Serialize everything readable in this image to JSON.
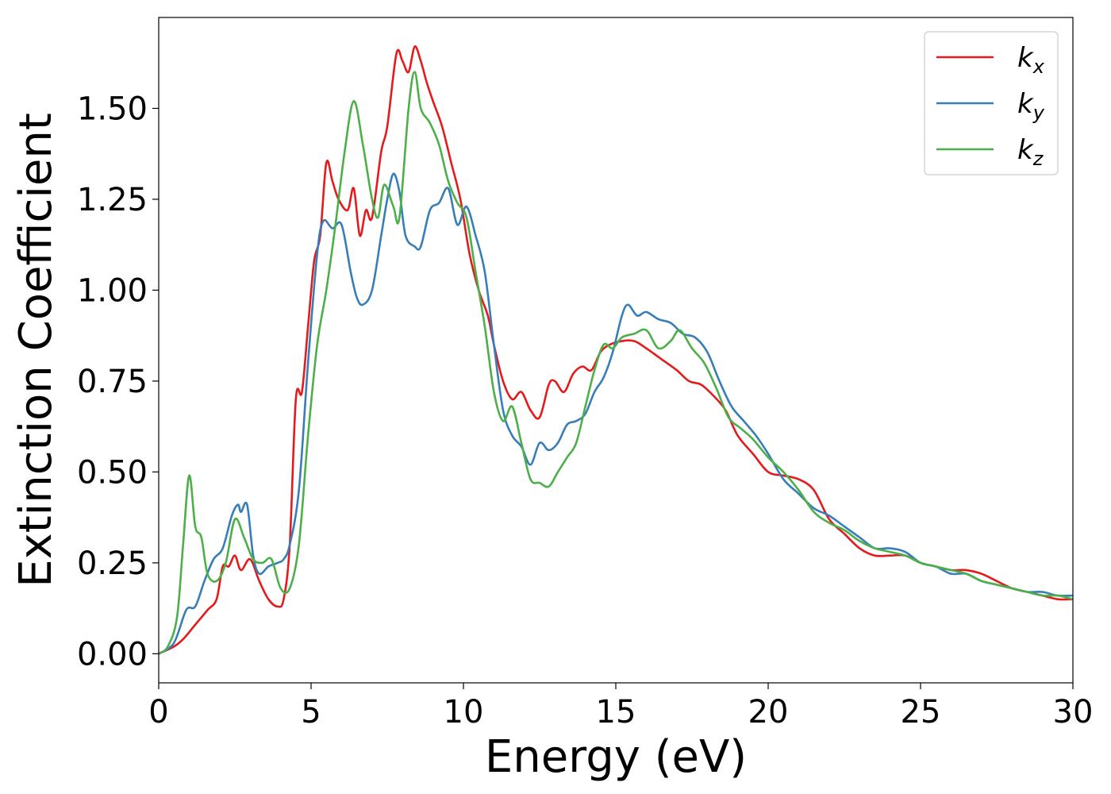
{
  "chart_data": {
    "type": "line",
    "xlabel": "Energy (eV)",
    "ylabel": "Extinction Coefficient",
    "xlim": [
      0,
      30
    ],
    "ylim": [
      -0.08,
      1.75
    ],
    "xticks": [
      0,
      5,
      10,
      15,
      20,
      25,
      30
    ],
    "xtick_labels": [
      "0",
      "5",
      "10",
      "15",
      "20",
      "25",
      "30"
    ],
    "yticks": [
      0,
      0.25,
      0.5,
      0.75,
      1.0,
      1.25,
      1.5
    ],
    "ytick_labels": [
      "0.00",
      "0.25",
      "0.50",
      "0.75",
      "1.00",
      "1.25",
      "1.50"
    ],
    "grid": false,
    "legend_position": "top-right",
    "series": [
      {
        "name": "k_x",
        "label_base": "k",
        "label_sub": "x",
        "color": "#e41a1c",
        "points": [
          [
            0,
            0
          ],
          [
            0.5,
            0.02
          ],
          [
            0.8,
            0.04
          ],
          [
            1.2,
            0.08
          ],
          [
            1.6,
            0.12
          ],
          [
            1.9,
            0.15
          ],
          [
            2.1,
            0.24
          ],
          [
            2.3,
            0.24
          ],
          [
            2.5,
            0.27
          ],
          [
            2.7,
            0.23
          ],
          [
            3.0,
            0.26
          ],
          [
            3.3,
            0.2
          ],
          [
            3.6,
            0.15
          ],
          [
            3.9,
            0.13
          ],
          [
            4.1,
            0.15
          ],
          [
            4.3,
            0.3
          ],
          [
            4.5,
            0.7
          ],
          [
            4.7,
            0.72
          ],
          [
            4.9,
            0.9
          ],
          [
            5.1,
            1.08
          ],
          [
            5.3,
            1.15
          ],
          [
            5.5,
            1.35
          ],
          [
            5.7,
            1.3
          ],
          [
            5.9,
            1.25
          ],
          [
            6.2,
            1.22
          ],
          [
            6.4,
            1.28
          ],
          [
            6.6,
            1.15
          ],
          [
            6.8,
            1.22
          ],
          [
            7.0,
            1.2
          ],
          [
            7.3,
            1.38
          ],
          [
            7.5,
            1.45
          ],
          [
            7.8,
            1.65
          ],
          [
            8.0,
            1.63
          ],
          [
            8.2,
            1.6
          ],
          [
            8.4,
            1.67
          ],
          [
            8.6,
            1.63
          ],
          [
            8.8,
            1.57
          ],
          [
            9.0,
            1.52
          ],
          [
            9.3,
            1.45
          ],
          [
            9.6,
            1.35
          ],
          [
            9.9,
            1.25
          ],
          [
            10.2,
            1.1
          ],
          [
            10.5,
            1.0
          ],
          [
            10.8,
            0.93
          ],
          [
            11.0,
            0.85
          ],
          [
            11.3,
            0.75
          ],
          [
            11.6,
            0.7
          ],
          [
            11.9,
            0.72
          ],
          [
            12.2,
            0.67
          ],
          [
            12.5,
            0.65
          ],
          [
            12.8,
            0.74
          ],
          [
            13.0,
            0.75
          ],
          [
            13.3,
            0.72
          ],
          [
            13.6,
            0.77
          ],
          [
            13.9,
            0.79
          ],
          [
            14.2,
            0.78
          ],
          [
            14.5,
            0.83
          ],
          [
            14.8,
            0.85
          ],
          [
            15.2,
            0.86
          ],
          [
            15.6,
            0.86
          ],
          [
            16.0,
            0.84
          ],
          [
            16.5,
            0.81
          ],
          [
            17.0,
            0.78
          ],
          [
            17.4,
            0.75
          ],
          [
            17.8,
            0.74
          ],
          [
            18.2,
            0.71
          ],
          [
            18.6,
            0.67
          ],
          [
            19.0,
            0.6
          ],
          [
            19.5,
            0.55
          ],
          [
            20.0,
            0.5
          ],
          [
            20.5,
            0.49
          ],
          [
            21.0,
            0.48
          ],
          [
            21.5,
            0.45
          ],
          [
            22.0,
            0.37
          ],
          [
            22.5,
            0.33
          ],
          [
            23.0,
            0.29
          ],
          [
            23.5,
            0.27
          ],
          [
            24.0,
            0.27
          ],
          [
            24.5,
            0.27
          ],
          [
            25.0,
            0.25
          ],
          [
            25.5,
            0.24
          ],
          [
            26.0,
            0.23
          ],
          [
            26.5,
            0.23
          ],
          [
            27.0,
            0.22
          ],
          [
            27.5,
            0.2
          ],
          [
            28.0,
            0.18
          ],
          [
            28.5,
            0.17
          ],
          [
            29.0,
            0.16
          ],
          [
            29.5,
            0.15
          ],
          [
            30.0,
            0.15
          ]
        ]
      },
      {
        "name": "k_y",
        "label_base": "k",
        "label_sub": "y",
        "color": "#377eb8",
        "points": [
          [
            0,
            0
          ],
          [
            0.5,
            0.03
          ],
          [
            0.9,
            0.12
          ],
          [
            1.2,
            0.13
          ],
          [
            1.5,
            0.2
          ],
          [
            1.8,
            0.26
          ],
          [
            2.1,
            0.29
          ],
          [
            2.4,
            0.38
          ],
          [
            2.6,
            0.41
          ],
          [
            2.7,
            0.39
          ],
          [
            2.9,
            0.41
          ],
          [
            3.1,
            0.27
          ],
          [
            3.3,
            0.22
          ],
          [
            3.6,
            0.24
          ],
          [
            3.9,
            0.25
          ],
          [
            4.1,
            0.26
          ],
          [
            4.3,
            0.3
          ],
          [
            4.6,
            0.45
          ],
          [
            4.9,
            0.8
          ],
          [
            5.2,
            1.1
          ],
          [
            5.4,
            1.19
          ],
          [
            5.7,
            1.17
          ],
          [
            6.0,
            1.18
          ],
          [
            6.3,
            1.05
          ],
          [
            6.5,
            0.98
          ],
          [
            6.7,
            0.96
          ],
          [
            7.0,
            1.0
          ],
          [
            7.3,
            1.15
          ],
          [
            7.5,
            1.25
          ],
          [
            7.7,
            1.32
          ],
          [
            7.9,
            1.27
          ],
          [
            8.1,
            1.15
          ],
          [
            8.4,
            1.12
          ],
          [
            8.6,
            1.12
          ],
          [
            8.9,
            1.22
          ],
          [
            9.2,
            1.24
          ],
          [
            9.5,
            1.28
          ],
          [
            9.8,
            1.18
          ],
          [
            10.1,
            1.23
          ],
          [
            10.4,
            1.15
          ],
          [
            10.7,
            1.05
          ],
          [
            11.0,
            0.85
          ],
          [
            11.3,
            0.67
          ],
          [
            11.6,
            0.6
          ],
          [
            11.9,
            0.57
          ],
          [
            12.2,
            0.52
          ],
          [
            12.5,
            0.58
          ],
          [
            12.8,
            0.56
          ],
          [
            13.1,
            0.58
          ],
          [
            13.4,
            0.63
          ],
          [
            13.7,
            0.64
          ],
          [
            14.0,
            0.66
          ],
          [
            14.3,
            0.72
          ],
          [
            14.6,
            0.76
          ],
          [
            14.9,
            0.83
          ],
          [
            15.2,
            0.93
          ],
          [
            15.4,
            0.96
          ],
          [
            15.7,
            0.93
          ],
          [
            16.0,
            0.94
          ],
          [
            16.4,
            0.92
          ],
          [
            16.8,
            0.91
          ],
          [
            17.2,
            0.88
          ],
          [
            17.6,
            0.87
          ],
          [
            18.0,
            0.83
          ],
          [
            18.4,
            0.75
          ],
          [
            18.8,
            0.68
          ],
          [
            19.2,
            0.64
          ],
          [
            19.6,
            0.6
          ],
          [
            20.0,
            0.55
          ],
          [
            20.5,
            0.48
          ],
          [
            21.0,
            0.44
          ],
          [
            21.5,
            0.4
          ],
          [
            22.0,
            0.38
          ],
          [
            22.5,
            0.35
          ],
          [
            23.0,
            0.32
          ],
          [
            23.5,
            0.29
          ],
          [
            24.0,
            0.29
          ],
          [
            24.5,
            0.28
          ],
          [
            25.0,
            0.25
          ],
          [
            25.5,
            0.24
          ],
          [
            26.0,
            0.22
          ],
          [
            26.5,
            0.22
          ],
          [
            27.0,
            0.2
          ],
          [
            27.5,
            0.19
          ],
          [
            28.0,
            0.18
          ],
          [
            28.5,
            0.17
          ],
          [
            29.0,
            0.17
          ],
          [
            29.5,
            0.16
          ],
          [
            30.0,
            0.16
          ]
        ]
      },
      {
        "name": "k_z",
        "label_base": "k",
        "label_sub": "z",
        "color": "#4daf4a",
        "points": [
          [
            0,
            0
          ],
          [
            0.3,
            0.02
          ],
          [
            0.6,
            0.1
          ],
          [
            0.8,
            0.3
          ],
          [
            1.0,
            0.49
          ],
          [
            1.2,
            0.35
          ],
          [
            1.4,
            0.32
          ],
          [
            1.6,
            0.22
          ],
          [
            1.9,
            0.2
          ],
          [
            2.2,
            0.25
          ],
          [
            2.5,
            0.37
          ],
          [
            2.8,
            0.32
          ],
          [
            3.1,
            0.26
          ],
          [
            3.4,
            0.25
          ],
          [
            3.7,
            0.26
          ],
          [
            4.0,
            0.18
          ],
          [
            4.3,
            0.18
          ],
          [
            4.6,
            0.3
          ],
          [
            4.9,
            0.6
          ],
          [
            5.2,
            0.85
          ],
          [
            5.5,
            1.0
          ],
          [
            5.8,
            1.18
          ],
          [
            6.1,
            1.38
          ],
          [
            6.4,
            1.52
          ],
          [
            6.7,
            1.4
          ],
          [
            7.0,
            1.25
          ],
          [
            7.2,
            1.2
          ],
          [
            7.4,
            1.29
          ],
          [
            7.7,
            1.23
          ],
          [
            7.9,
            1.2
          ],
          [
            8.2,
            1.5
          ],
          [
            8.4,
            1.6
          ],
          [
            8.6,
            1.5
          ],
          [
            8.9,
            1.46
          ],
          [
            9.2,
            1.4
          ],
          [
            9.5,
            1.3
          ],
          [
            9.8,
            1.24
          ],
          [
            10.1,
            1.2
          ],
          [
            10.4,
            1.05
          ],
          [
            10.7,
            0.9
          ],
          [
            11.0,
            0.72
          ],
          [
            11.3,
            0.64
          ],
          [
            11.6,
            0.68
          ],
          [
            11.9,
            0.58
          ],
          [
            12.2,
            0.48
          ],
          [
            12.5,
            0.47
          ],
          [
            12.8,
            0.46
          ],
          [
            13.1,
            0.5
          ],
          [
            13.4,
            0.54
          ],
          [
            13.7,
            0.58
          ],
          [
            14.0,
            0.68
          ],
          [
            14.3,
            0.78
          ],
          [
            14.6,
            0.85
          ],
          [
            14.9,
            0.84
          ],
          [
            15.2,
            0.87
          ],
          [
            15.6,
            0.88
          ],
          [
            16.0,
            0.89
          ],
          [
            16.4,
            0.84
          ],
          [
            16.8,
            0.86
          ],
          [
            17.1,
            0.89
          ],
          [
            17.5,
            0.84
          ],
          [
            17.9,
            0.8
          ],
          [
            18.3,
            0.73
          ],
          [
            18.7,
            0.65
          ],
          [
            19.1,
            0.62
          ],
          [
            19.5,
            0.59
          ],
          [
            20.0,
            0.54
          ],
          [
            20.5,
            0.5
          ],
          [
            21.0,
            0.45
          ],
          [
            21.5,
            0.39
          ],
          [
            22.0,
            0.36
          ],
          [
            22.5,
            0.34
          ],
          [
            23.0,
            0.31
          ],
          [
            23.5,
            0.29
          ],
          [
            24.0,
            0.28
          ],
          [
            24.5,
            0.27
          ],
          [
            25.0,
            0.25
          ],
          [
            25.5,
            0.24
          ],
          [
            26.0,
            0.23
          ],
          [
            26.5,
            0.22
          ],
          [
            27.0,
            0.2
          ],
          [
            27.5,
            0.19
          ],
          [
            28.0,
            0.18
          ],
          [
            28.5,
            0.17
          ],
          [
            29.0,
            0.16
          ],
          [
            29.5,
            0.16
          ],
          [
            30.0,
            0.15
          ]
        ]
      }
    ]
  }
}
